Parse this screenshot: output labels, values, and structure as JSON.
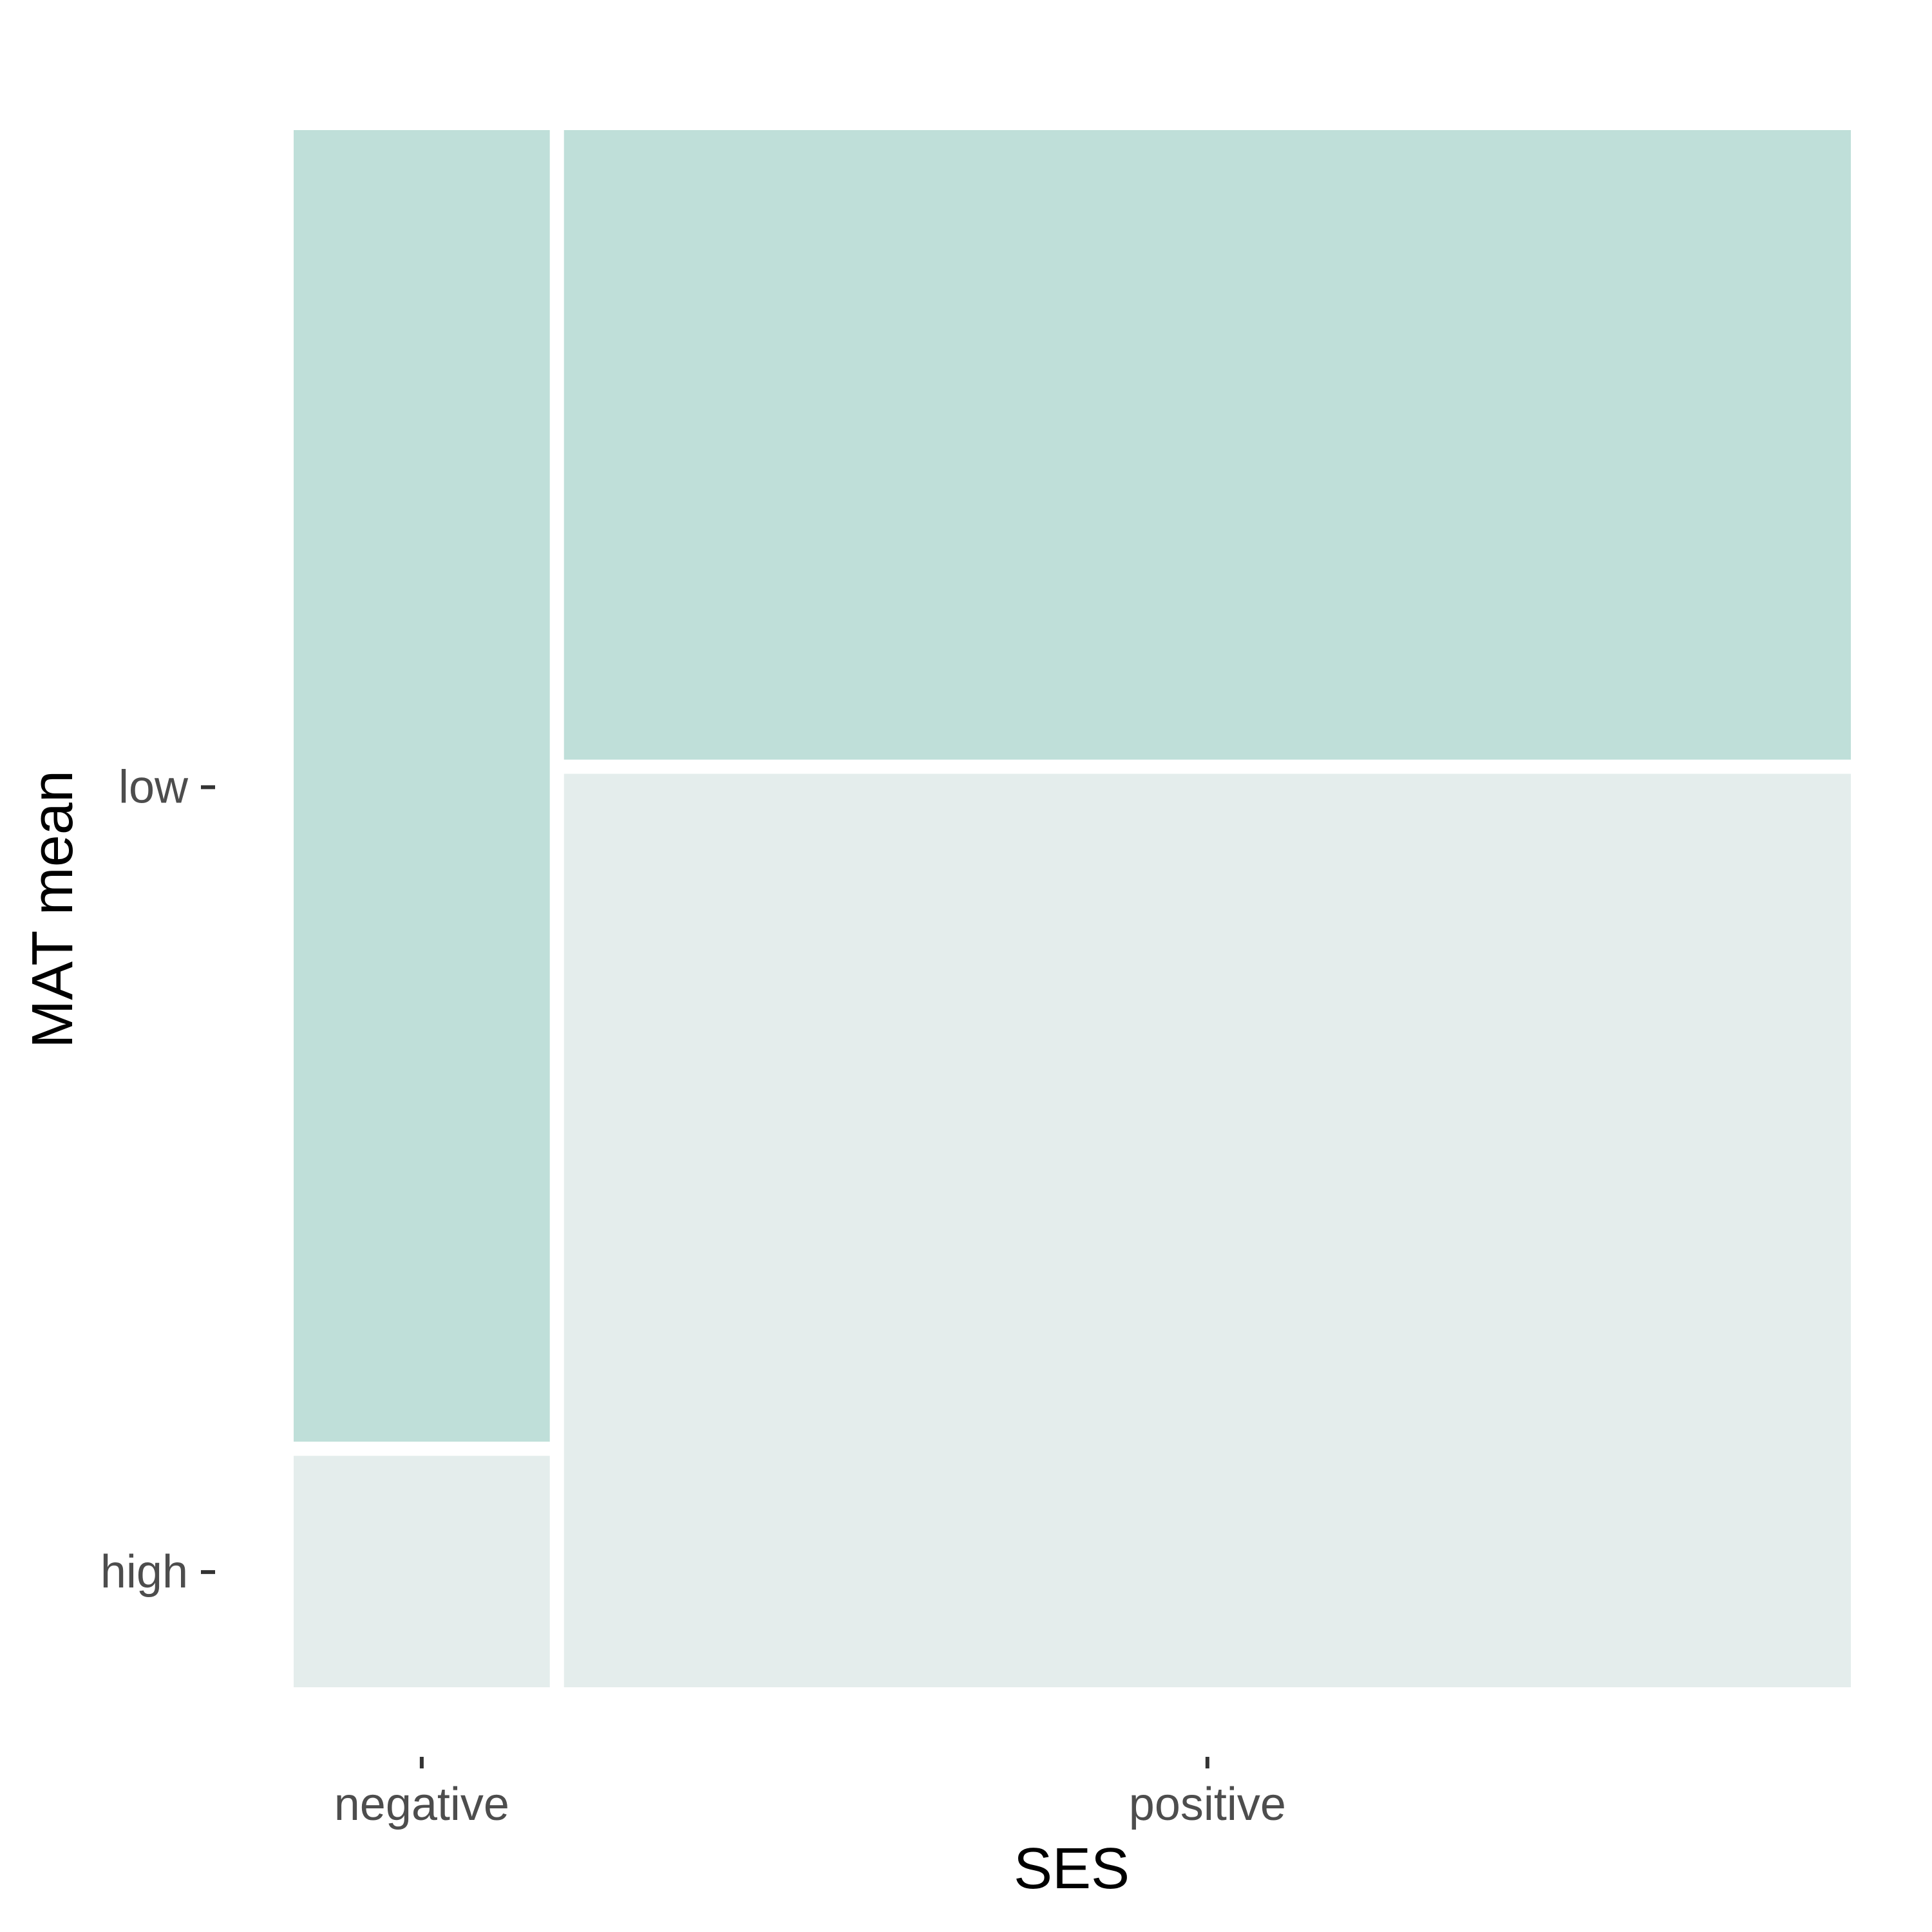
{
  "chart_data": {
    "type": "mosaic",
    "xlabel": "SES",
    "ylabel": "MAT mean",
    "x_categories": [
      "negative",
      "positive"
    ],
    "y_categories": [
      "low",
      "high"
    ],
    "x_proportions": [
      0.166,
      0.834
    ],
    "cells": [
      {
        "x": "negative",
        "y": "low",
        "proportion": 0.85,
        "fill": "#bfdfd9"
      },
      {
        "x": "negative",
        "y": "high",
        "proportion": 0.15,
        "fill": "#e4edec"
      },
      {
        "x": "positive",
        "y": "low",
        "proportion": 0.408,
        "fill": "#bfdfd9"
      },
      {
        "x": "positive",
        "y": "high",
        "proportion": 0.592,
        "fill": "#e4edec"
      }
    ],
    "y_tick_positions": [
      0.578,
      0.074
    ],
    "grid": false,
    "legend": "none",
    "colors": {
      "low": "#bfdfd9",
      "high": "#e4edec",
      "tick": "#333333",
      "tick_label": "#4d4d4d",
      "title": "#000000"
    }
  }
}
